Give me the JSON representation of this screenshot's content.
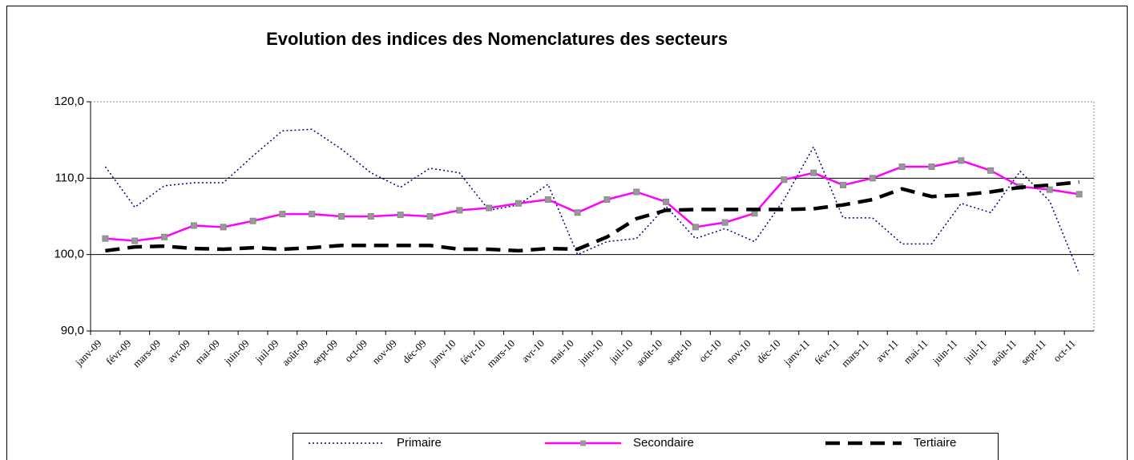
{
  "chart_data": {
    "type": "line",
    "title": "Evolution des indices des Nomenclatures des secteurs",
    "categories": [
      "janv-09",
      "févr-09",
      "mars-09",
      "avr-09",
      "mai-09",
      "juin-09",
      "juil-09",
      "août-09",
      "sept-09",
      "oct-09",
      "nov-09",
      "déc-09",
      "janv-10",
      "févr-10",
      "mars-10",
      "avr-10",
      "mai-10",
      "juin-10",
      "juil-10",
      "août-10",
      "sept-10",
      "oct-10",
      "nov-10",
      "déc-10",
      "janv-11",
      "févr-11",
      "mars-11",
      "avr-11",
      "mai-11",
      "juin-11",
      "juil-11",
      "août-11",
      "sept-11",
      "oct-11"
    ],
    "series": [
      {
        "name": "Primaire",
        "color": "#000080",
        "values": [
          111.5,
          106.2,
          109.0,
          109.4,
          109.4,
          112.9,
          116.2,
          116.4,
          113.8,
          110.7,
          108.8,
          111.3,
          110.7,
          105.8,
          106.5,
          109.2,
          100.0,
          101.7,
          102.1,
          106.3,
          102.1,
          103.4,
          101.7,
          107.2,
          114.1,
          104.8,
          104.8,
          101.4,
          101.4,
          106.7,
          105.5,
          110.9,
          107.0,
          97.5
        ]
      },
      {
        "name": "Secondaire",
        "color": "#ff00ff",
        "values": [
          102.1,
          101.8,
          102.3,
          103.8,
          103.6,
          104.4,
          105.3,
          105.3,
          105.0,
          105.0,
          105.2,
          105.0,
          105.8,
          106.1,
          106.7,
          107.2,
          105.5,
          107.2,
          108.2,
          106.9,
          103.6,
          104.2,
          105.4,
          109.8,
          110.7,
          109.1,
          110.0,
          111.5,
          111.5,
          112.3,
          111.0,
          108.9,
          108.5,
          107.9
        ]
      },
      {
        "name": "Tertiaire",
        "color": "#000000",
        "values": [
          100.5,
          101.0,
          101.1,
          100.8,
          100.7,
          100.9,
          100.7,
          100.9,
          101.2,
          101.2,
          101.2,
          101.2,
          100.7,
          100.7,
          100.5,
          100.8,
          100.7,
          102.3,
          104.7,
          105.8,
          105.9,
          105.9,
          105.9,
          105.9,
          106.0,
          106.5,
          107.2,
          108.6,
          107.6,
          107.8,
          108.2,
          108.8,
          109.1,
          109.5
        ]
      }
    ],
    "ylim": [
      90,
      120
    ],
    "yticks": [
      {
        "value": 90,
        "label": "90,0"
      },
      {
        "value": 100,
        "label": "100,0"
      },
      {
        "value": 110,
        "label": "110,0"
      },
      {
        "value": 120,
        "label": "120,0"
      }
    ],
    "grid": true,
    "legend": "bottom"
  }
}
